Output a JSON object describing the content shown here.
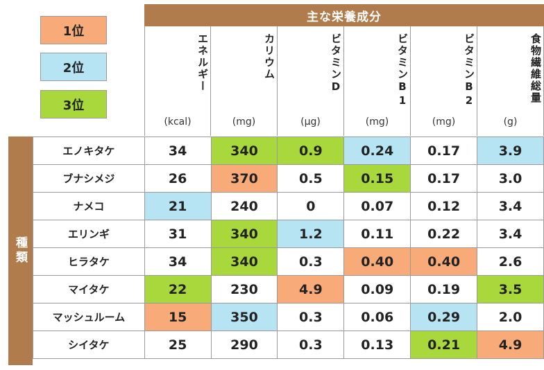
{
  "legend": [
    {
      "label": "1位",
      "color": "#f8ab79"
    },
    {
      "label": "2位",
      "color": "#b6e4f2"
    },
    {
      "label": "3位",
      "color": "#a9d83c"
    }
  ],
  "header": {
    "title": "主な栄養成分"
  },
  "row_group_label": "種類",
  "chart_data": {
    "type": "table",
    "title": "主な栄養成分",
    "columns": [
      {
        "name": "エネルギー",
        "unit": "(kcal)"
      },
      {
        "name": "カリウム",
        "unit": "(mg)"
      },
      {
        "name": "ビタミンD",
        "unit": "(μg)"
      },
      {
        "name": "ビタミンB1",
        "unit": "(mg)"
      },
      {
        "name": "ビタミンB2",
        "unit": "(mg)"
      },
      {
        "name": "食物繊維総量",
        "unit": "(g)"
      }
    ],
    "rows": [
      {
        "name": "エノキタケ",
        "values": [
          "34",
          "340",
          "0.9",
          "0.24",
          "0.17",
          "3.9"
        ],
        "ranks": [
          0,
          3,
          3,
          2,
          0,
          2
        ]
      },
      {
        "name": "ブナシメジ",
        "values": [
          "26",
          "370",
          "0.5",
          "0.15",
          "0.17",
          "3.0"
        ],
        "ranks": [
          0,
          1,
          0,
          3,
          0,
          0
        ]
      },
      {
        "name": "ナメコ",
        "values": [
          "21",
          "240",
          "0",
          "0.07",
          "0.12",
          "3.4"
        ],
        "ranks": [
          2,
          0,
          0,
          0,
          0,
          0
        ]
      },
      {
        "name": "エリンギ",
        "values": [
          "31",
          "340",
          "1.2",
          "0.11",
          "0.22",
          "3.4"
        ],
        "ranks": [
          0,
          3,
          2,
          0,
          0,
          0
        ]
      },
      {
        "name": "ヒラタケ",
        "values": [
          "34",
          "340",
          "0.3",
          "0.40",
          "0.40",
          "2.6"
        ],
        "ranks": [
          0,
          3,
          0,
          1,
          1,
          0
        ]
      },
      {
        "name": "マイタケ",
        "values": [
          "22",
          "230",
          "4.9",
          "0.09",
          "0.19",
          "3.5"
        ],
        "ranks": [
          3,
          0,
          1,
          0,
          0,
          3
        ]
      },
      {
        "name": "マッシュルーム",
        "values": [
          "15",
          "350",
          "0.3",
          "0.06",
          "0.29",
          "2.0"
        ],
        "ranks": [
          1,
          2,
          0,
          0,
          2,
          0
        ]
      },
      {
        "name": "シイタケ",
        "values": [
          "25",
          "290",
          "0.3",
          "0.13",
          "0.21",
          "4.9"
        ],
        "ranks": [
          0,
          0,
          0,
          0,
          3,
          1
        ]
      }
    ]
  }
}
